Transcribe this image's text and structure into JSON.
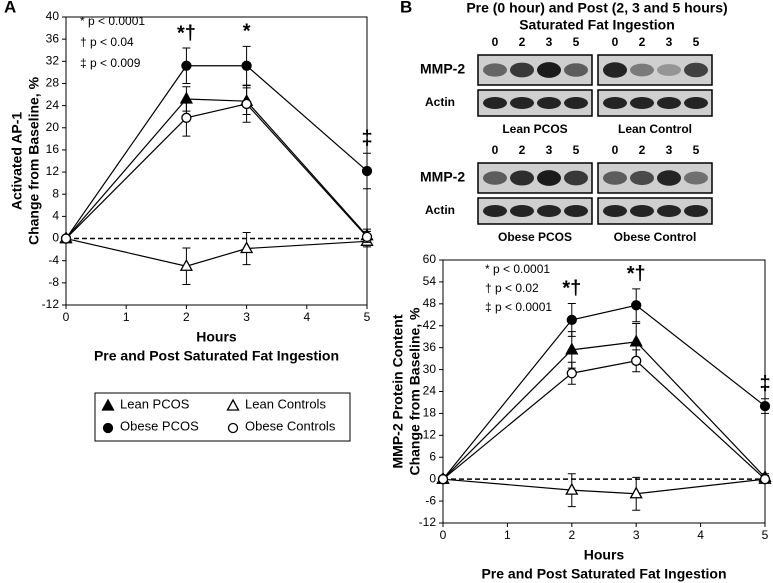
{
  "panel_labels": [
    "A",
    "B"
  ],
  "blots": {
    "title": [
      "Pre (0 hour) and Post (2, 3 and 5 hours)",
      "Saturated Fat Ingestion"
    ],
    "lanes": [
      "0",
      "2",
      "3",
      "5"
    ],
    "rows": [
      "MMP-2",
      "Actin"
    ],
    "groups": [
      "Lean PCOS",
      "Lean Control",
      "Obese PCOS",
      "Obese Control"
    ]
  },
  "chart_data": [
    {
      "type": "line",
      "y_label": [
        "Activated AP-1",
        "Change from Baseline, %"
      ],
      "x_label": [
        "Hours",
        "Pre and Post Saturated Fat Ingestion"
      ],
      "x": [
        0,
        2,
        3,
        5
      ],
      "xlim": [
        0,
        5
      ],
      "xticks": [
        0,
        1,
        2,
        3,
        4,
        5
      ],
      "ylim": [
        -12,
        40
      ],
      "yticks": [
        -12,
        -8,
        -4,
        0,
        4,
        8,
        12,
        16,
        20,
        24,
        28,
        32,
        36,
        40
      ],
      "series": [
        {
          "name": "Lean PCOS",
          "marker": "triangle",
          "color": "#000",
          "fill": "#000",
          "values": [
            0,
            25.2,
            24.8,
            0.5
          ],
          "errors": [
            0,
            2.2,
            2.4,
            1.2
          ]
        },
        {
          "name": "Lean Controls",
          "marker": "triangle",
          "color": "#000",
          "fill": "#fff",
          "values": [
            0,
            -5,
            -1.8,
            -0.5
          ],
          "errors": [
            0,
            3.3,
            2.9,
            1
          ]
        },
        {
          "name": "Obese PCOS",
          "marker": "circle",
          "color": "#000",
          "fill": "#000",
          "values": [
            0,
            31.2,
            31.2,
            12.2
          ],
          "errors": [
            0,
            3.2,
            3.5,
            3.2
          ]
        },
        {
          "name": "Obese Controls",
          "marker": "circle",
          "color": "#000",
          "fill": "#fff",
          "values": [
            0,
            21.8,
            24.3,
            0.3
          ],
          "errors": [
            0,
            3.3,
            3.3,
            1
          ]
        }
      ],
      "annotations": [
        "*  p < 0.0001",
        "†  p < 0.04",
        "‡  p < 0.009"
      ],
      "significance": [
        {
          "x": 2,
          "label": "*†"
        },
        {
          "x": 3,
          "label": "*"
        },
        {
          "x": 5,
          "label": "‡"
        }
      ]
    },
    {
      "type": "line",
      "y_label": [
        "MMP-2 Protein Content",
        "Change from Baseline, %"
      ],
      "x_label": [
        "Hours",
        "Pre and Post Saturated Fat Ingestion"
      ],
      "x": [
        0,
        2,
        3,
        5
      ],
      "xlim": [
        0,
        5
      ],
      "xticks": [
        0,
        1,
        2,
        3,
        4,
        5
      ],
      "ylim": [
        -12,
        60
      ],
      "yticks": [
        -12,
        -6,
        0,
        6,
        12,
        18,
        24,
        30,
        36,
        42,
        48,
        54,
        60
      ],
      "series": [
        {
          "marker": "triangle",
          "color": "#000",
          "fill": "#000",
          "values": [
            0,
            35.4,
            37.6,
            0.5
          ],
          "errors": [
            0,
            5,
            5,
            1
          ]
        },
        {
          "marker": "triangle",
          "color": "#000",
          "fill": "#fff",
          "values": [
            0,
            -3,
            -4,
            0
          ],
          "errors": [
            0,
            4.5,
            4.5,
            1
          ]
        },
        {
          "marker": "circle",
          "color": "#000",
          "fill": "#000",
          "values": [
            0,
            43.6,
            47.6,
            20
          ],
          "errors": [
            0,
            4.5,
            4.5,
            2
          ]
        },
        {
          "marker": "circle",
          "color": "#000",
          "fill": "#fff",
          "values": [
            0,
            29,
            32.4,
            0
          ],
          "errors": [
            0,
            3,
            3,
            1
          ]
        }
      ],
      "annotations": [
        "*  p < 0.0001",
        "†  p < 0.02",
        "‡  p < 0.0001"
      ],
      "significance": [
        {
          "x": 2,
          "label": "*†"
        },
        {
          "x": 3,
          "label": "*†"
        },
        {
          "x": 5,
          "label": "‡"
        }
      ]
    }
  ]
}
